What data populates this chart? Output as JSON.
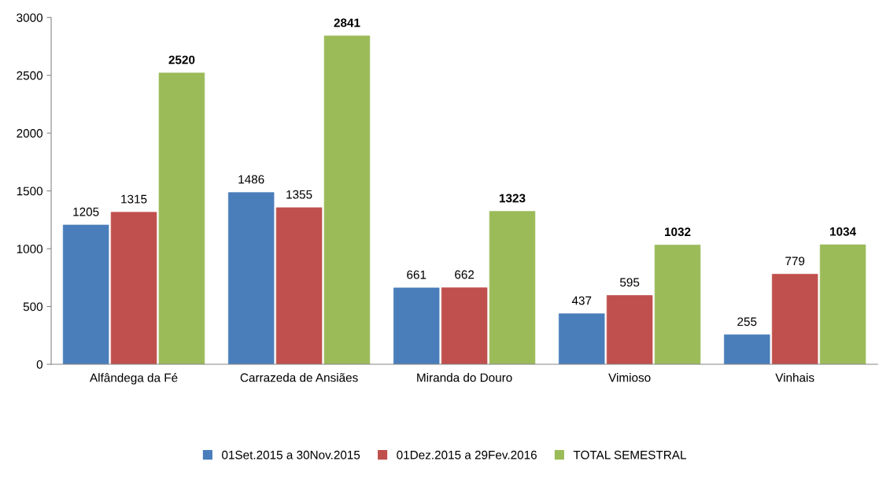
{
  "chart_data": {
    "type": "bar",
    "categories": [
      "Alfândega da Fé",
      "Carrazeda de Ansiães",
      "Miranda do Douro",
      "Vimioso",
      "Vinhais"
    ],
    "series": [
      {
        "name": "01Set.2015 a 30Nov.2015",
        "color": "#4a7ebb",
        "values": [
          1205,
          1486,
          661,
          437,
          255
        ]
      },
      {
        "name": "01Dez.2015 a 29Fev.2016",
        "color": "#c0504d",
        "values": [
          1315,
          1355,
          662,
          595,
          779
        ]
      },
      {
        "name": "TOTAL SEMESTRAL",
        "color": "#9bbb59",
        "values": [
          2520,
          2841,
          1323,
          1032,
          1034
        ]
      }
    ],
    "ylim": [
      0,
      3000
    ],
    "yticks": [
      0,
      500,
      1000,
      1500,
      2000,
      2500,
      3000
    ],
    "data_labels": true,
    "grid": false,
    "legend": "bottom"
  }
}
